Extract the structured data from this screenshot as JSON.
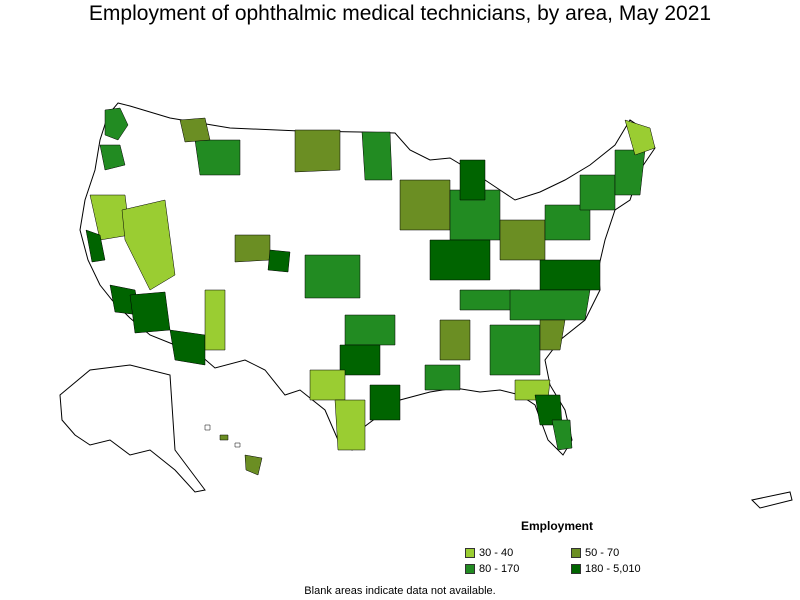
{
  "title": "Employment of ophthalmic medical technicians, by area, May 2021",
  "legend": {
    "title": "Employment",
    "items": [
      {
        "label": "30 - 40",
        "color": "#9acd32"
      },
      {
        "label": "50 - 70",
        "color": "#6b8e23"
      },
      {
        "label": "80 - 170",
        "color": "#228b22"
      },
      {
        "label": "180 - 5,010",
        "color": "#006400"
      }
    ]
  },
  "footnote": "Blank areas indicate data not available.",
  "colors": {
    "outline": "#000000",
    "blank": "#ffffff"
  }
}
